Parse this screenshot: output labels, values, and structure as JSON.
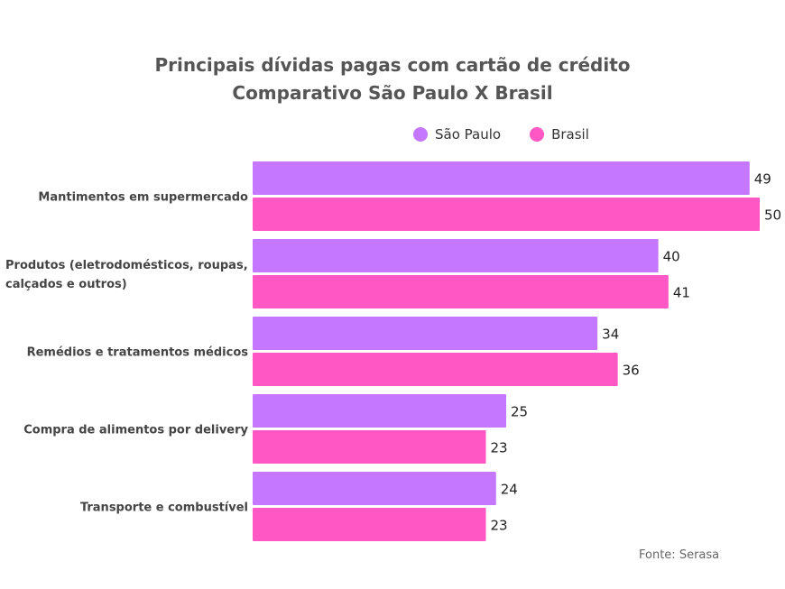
{
  "chart_data": {
    "type": "bar",
    "orientation": "horizontal",
    "title": "Principais dívidas pagas com cartão de crédito",
    "subtitle": "Comparativo São Paulo X Brasil",
    "categories": [
      [
        "Mantimentos em supermercado"
      ],
      [
        "Produtos (eletrodomésticos, roupas,",
        "calçados e outros)"
      ],
      [
        "Remédios e tratamentos médicos"
      ],
      [
        "Compra de alimentos por delivery"
      ],
      [
        "Transporte e combustível"
      ]
    ],
    "series": [
      {
        "name": "São Paulo",
        "color": "#c578ff",
        "values": [
          49,
          40,
          34,
          25,
          24
        ]
      },
      {
        "name": "Brasil",
        "color": "#ff57c3",
        "values": [
          50,
          41,
          36,
          23,
          23
        ]
      }
    ],
    "xlim": [
      0,
      50
    ],
    "grid": false,
    "legend": "top",
    "data_labels": true,
    "source": "Fonte: Serasa"
  }
}
